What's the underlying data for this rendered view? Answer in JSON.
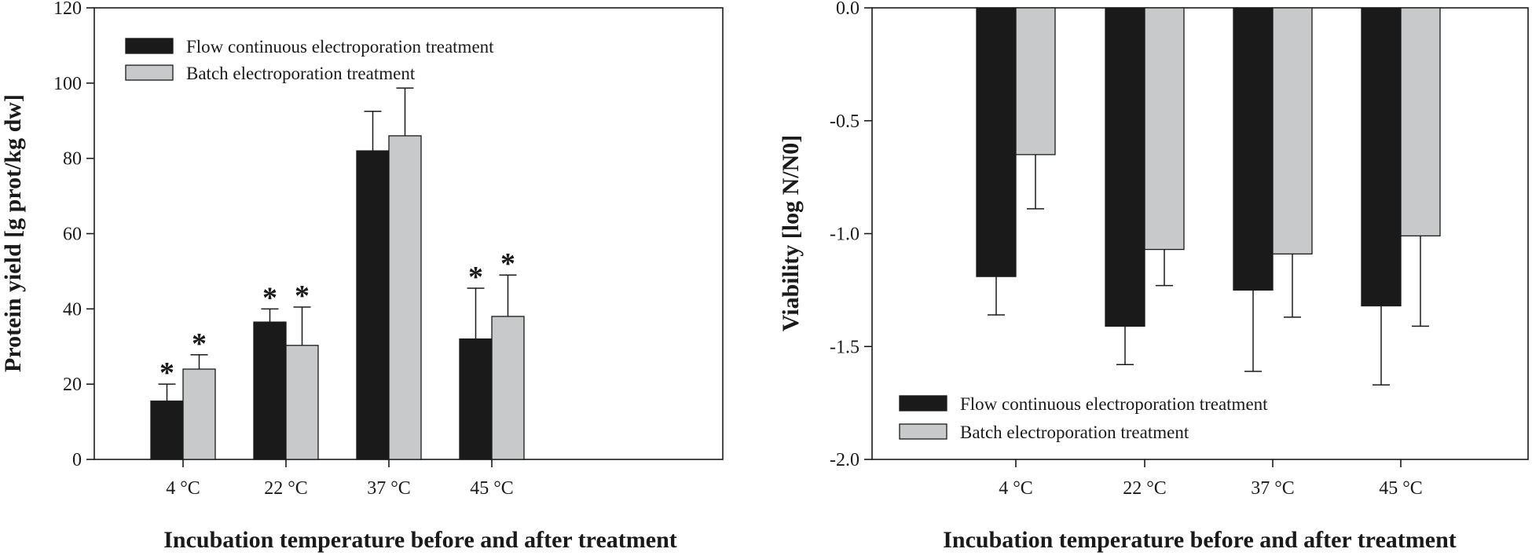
{
  "chart_data": [
    {
      "type": "bar",
      "title": "",
      "xlabel": "Incubation temperature before and after treatment",
      "ylabel": "Protein yield [g prot/kg dw]",
      "ylim": [
        0,
        120
      ],
      "yticks": [
        "0",
        "20",
        "40",
        "60",
        "80",
        "100",
        "120"
      ],
      "categories": [
        "4 °C",
        "22 °C",
        "37 °C",
        "45 °C"
      ],
      "legend_position": "top-left",
      "colors": {
        "flow": "#1a1a1a",
        "batch": "#c8c9cb"
      },
      "series": [
        {
          "name": "Flow continuous electroporation treatment",
          "values": [
            15.5,
            36.5,
            82,
            32
          ],
          "errors": [
            4.5,
            3.5,
            10.5,
            13.5
          ],
          "marks": [
            "*",
            "*",
            "",
            "*"
          ]
        },
        {
          "name": "Batch electroporation treatment",
          "values": [
            24,
            30.3,
            86,
            38
          ],
          "errors": [
            3.8,
            10.2,
            12.7,
            11
          ],
          "marks": [
            "*",
            "*",
            "",
            "*"
          ]
        }
      ]
    },
    {
      "type": "bar",
      "title": "",
      "xlabel": "Incubation temperature before and after treatment",
      "ylabel": "Viability [log N/N0]",
      "ylim": [
        -2.0,
        0.0
      ],
      "yticks": [
        "0.0",
        "-0.5",
        "-1.0",
        "-1.5",
        "-2.0"
      ],
      "categories": [
        "4 °C",
        "22 °C",
        "37 °C",
        "45 °C"
      ],
      "legend_position": "bottom-left",
      "colors": {
        "flow": "#1a1a1a",
        "batch": "#c8c9cb"
      },
      "series": [
        {
          "name": "Flow continuous electroporation treatment",
          "values": [
            -1.19,
            -1.41,
            -1.25,
            -1.32
          ],
          "errors": [
            0.17,
            0.17,
            0.36,
            0.35
          ]
        },
        {
          "name": "Batch electroporation treatment",
          "values": [
            -0.65,
            -1.07,
            -1.09,
            -1.01
          ],
          "errors": [
            0.24,
            0.16,
            0.28,
            0.4
          ]
        }
      ]
    }
  ]
}
